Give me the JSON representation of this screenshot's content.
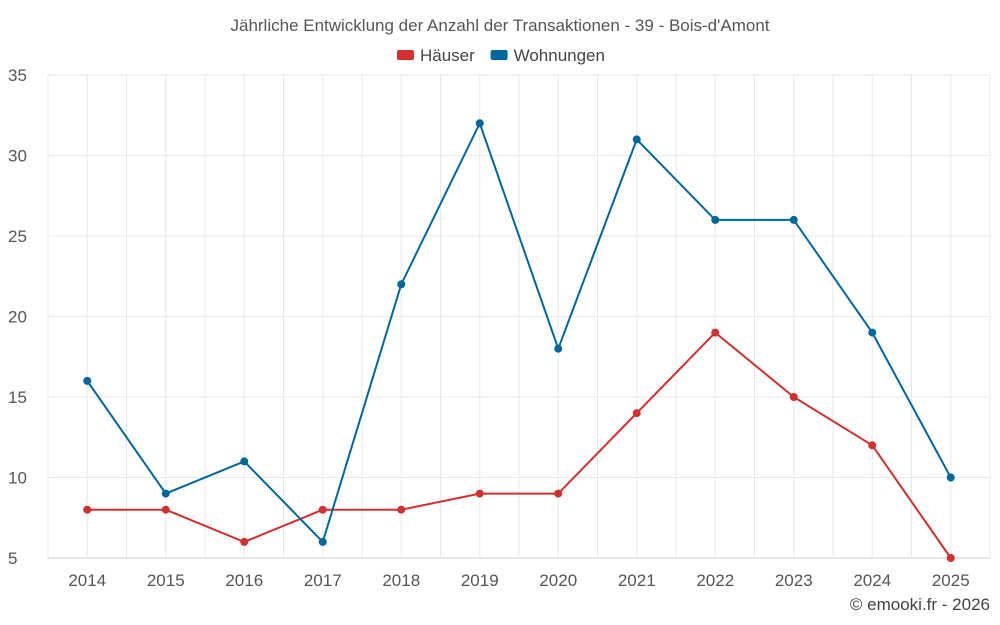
{
  "chart_data": {
    "type": "line",
    "title": "Jährliche Entwicklung der Anzahl der Transaktionen - 39 - Bois-d'Amont",
    "categories": [
      "2014",
      "2015",
      "2016",
      "2017",
      "2018",
      "2019",
      "2020",
      "2021",
      "2022",
      "2023",
      "2024",
      "2025"
    ],
    "series": [
      {
        "name": "Häuser",
        "color": "#d32f2f",
        "values": [
          8,
          8,
          6,
          8,
          8,
          9,
          9,
          14,
          19,
          15,
          12,
          5
        ]
      },
      {
        "name": "Wohnungen",
        "color": "#00679e",
        "values": [
          16,
          9,
          11,
          6,
          22,
          32,
          18,
          31,
          26,
          26,
          19,
          10
        ]
      }
    ],
    "ylim": [
      5,
      35
    ],
    "yticks": [
      5,
      10,
      15,
      20,
      25,
      30,
      35
    ],
    "xlabel": "",
    "ylabel": "",
    "grid": true,
    "legend": "top-center"
  },
  "credit": "© emooki.fr - 2026"
}
